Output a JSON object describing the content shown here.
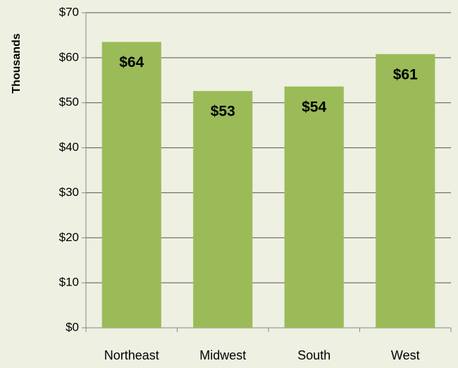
{
  "chart_data": {
    "type": "bar",
    "y_axis_label": "Thousands",
    "categories": [
      "Northeast",
      "Midwest",
      "South",
      "West"
    ],
    "values": [
      63.5,
      52.6,
      53.6,
      60.8
    ],
    "value_labels": [
      "$64",
      "$53",
      "$54",
      "$61"
    ],
    "color": "#9bbb59",
    "ylim": [
      0,
      70
    ],
    "yticks": [
      {
        "value": 0,
        "label": "$0"
      },
      {
        "value": 10,
        "label": "$10"
      },
      {
        "value": 20,
        "label": "$20"
      },
      {
        "value": 30,
        "label": "$30"
      },
      {
        "value": 40,
        "label": "$40"
      },
      {
        "value": 50,
        "label": "$50"
      },
      {
        "value": 60,
        "label": "$60"
      },
      {
        "value": 70,
        "label": "$70"
      }
    ],
    "grid": true
  }
}
